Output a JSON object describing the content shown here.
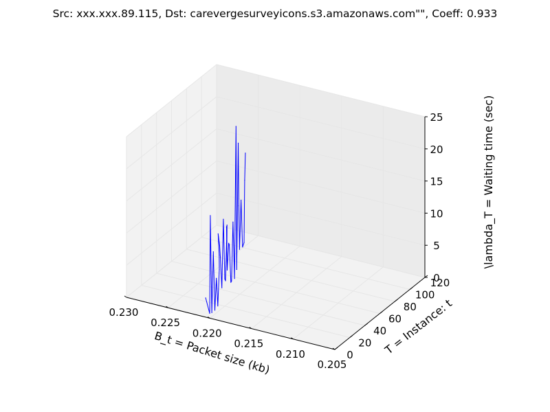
{
  "chart_data": {
    "type": "line",
    "projection": "3d",
    "title": "Src: xxx.xxx.89.115, Dst: carevergesurveyicons.s3.amazonaws.com\"\", Coeff: 0.933",
    "xlabel": "B_t = Packet size (kb)",
    "ylabel": "T = Instance: t",
    "zlabel": "\\lambda_T = Waiting time (sec)",
    "xlim": [
      0.205,
      0.23
    ],
    "ylim": [
      0,
      120
    ],
    "zlim": [
      0,
      25
    ],
    "xticks": [
      "0.205",
      "0.210",
      "0.215",
      "0.220",
      "0.225",
      "0.230"
    ],
    "yticks": [
      "0",
      "20",
      "40",
      "60",
      "80",
      "100",
      "120"
    ],
    "zticks": [
      "0",
      "5",
      "10",
      "15",
      "20",
      "25"
    ],
    "grid": true,
    "series_color": "#0000ff",
    "points": [
      {
        "x": 0.2205,
        "y": 0,
        "z": 3.0
      },
      {
        "x": 0.2202,
        "y": 2,
        "z": 0.5
      },
      {
        "x": 0.2203,
        "y": 4,
        "z": 15.5
      },
      {
        "x": 0.2203,
        "y": 6,
        "z": 0.2
      },
      {
        "x": 0.2203,
        "y": 8,
        "z": 9.5
      },
      {
        "x": 0.2203,
        "y": 10,
        "z": 0.2
      },
      {
        "x": 0.2203,
        "y": 12,
        "z": 5.0
      },
      {
        "x": 0.2203,
        "y": 14,
        "z": 0.5
      },
      {
        "x": 0.2203,
        "y": 16,
        "z": 6.0
      },
      {
        "x": 0.2205,
        "y": 18,
        "z": 8.0
      },
      {
        "x": 0.2208,
        "y": 20,
        "z": 11.0
      },
      {
        "x": 0.2208,
        "y": 22,
        "z": 9.0
      },
      {
        "x": 0.2209,
        "y": 24,
        "z": 7.0
      },
      {
        "x": 0.2209,
        "y": 26,
        "z": 2.0
      },
      {
        "x": 0.2209,
        "y": 28,
        "z": 12.5
      },
      {
        "x": 0.2209,
        "y": 30,
        "z": 3.0
      },
      {
        "x": 0.221,
        "y": 32,
        "z": 2.5
      },
      {
        "x": 0.221,
        "y": 34,
        "z": 11.0
      },
      {
        "x": 0.2212,
        "y": 36,
        "z": 7.0
      },
      {
        "x": 0.2214,
        "y": 38,
        "z": 7.0
      },
      {
        "x": 0.2216,
        "y": 40,
        "z": 10.0
      },
      {
        "x": 0.2217,
        "y": 42,
        "z": 3.0
      },
      {
        "x": 0.2217,
        "y": 44,
        "z": 7.0
      },
      {
        "x": 0.2218,
        "y": 46,
        "z": 6.5
      },
      {
        "x": 0.2218,
        "y": 48,
        "z": 0.5
      },
      {
        "x": 0.2219,
        "y": 50,
        "z": 0.5
      },
      {
        "x": 0.2219,
        "y": 52,
        "z": 9.5
      },
      {
        "x": 0.2219,
        "y": 54,
        "z": 0.5
      },
      {
        "x": 0.2219,
        "y": 56,
        "z": 24.0
      },
      {
        "x": 0.222,
        "y": 58,
        "z": 1.5
      },
      {
        "x": 0.222,
        "y": 60,
        "z": 21.0
      },
      {
        "x": 0.2221,
        "y": 62,
        "z": 11.0
      },
      {
        "x": 0.2222,
        "y": 64,
        "z": 4.0
      },
      {
        "x": 0.2222,
        "y": 66,
        "z": 11.5
      },
      {
        "x": 0.2222,
        "y": 68,
        "z": 4.0
      },
      {
        "x": 0.2222,
        "y": 70,
        "z": 4.5
      },
      {
        "x": 0.2223,
        "y": 72,
        "z": 14.0
      },
      {
        "x": 0.2224,
        "y": 74,
        "z": 18.0
      }
    ]
  }
}
